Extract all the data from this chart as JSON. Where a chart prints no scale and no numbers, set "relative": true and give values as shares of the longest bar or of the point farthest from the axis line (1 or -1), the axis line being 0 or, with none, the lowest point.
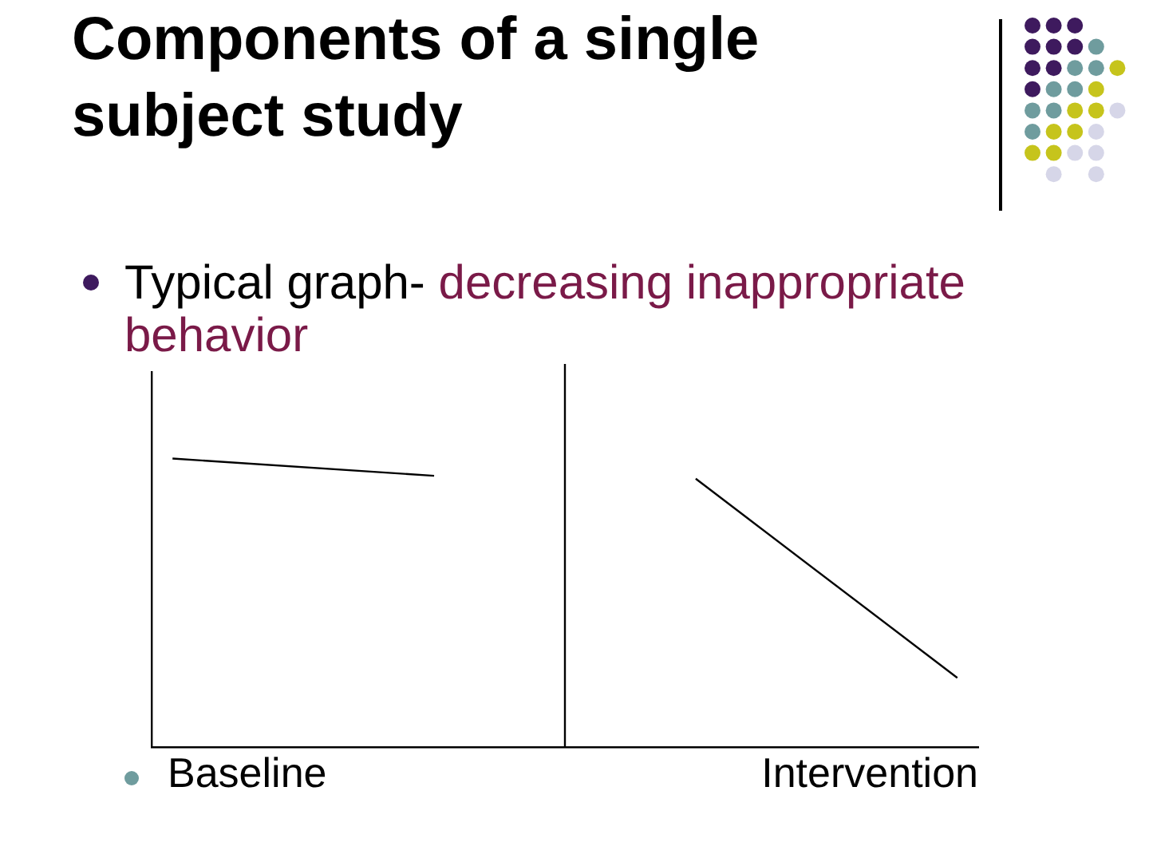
{
  "chart_data": {
    "type": "line",
    "title": "Components of a single subject study",
    "subtitle": "Typical graph- decreasing inappropriate behavior",
    "categories": [
      null,
      null,
      null,
      null
    ],
    "relative": true,
    "series": [
      {
        "color": "#000000",
        "values": [
          1,
          0.94,
          null,
          null
        ]
      },
      {
        "color": "#000000",
        "values": [
          null,
          null,
          0.93,
          0.24
        ]
      }
    ],
    "annotations": [
      "Baseline",
      "Intervention"
    ],
    "grid": false,
    "legend": false,
    "marker": "none",
    "line_style": "solid",
    "tick_labels": false
  }
}
